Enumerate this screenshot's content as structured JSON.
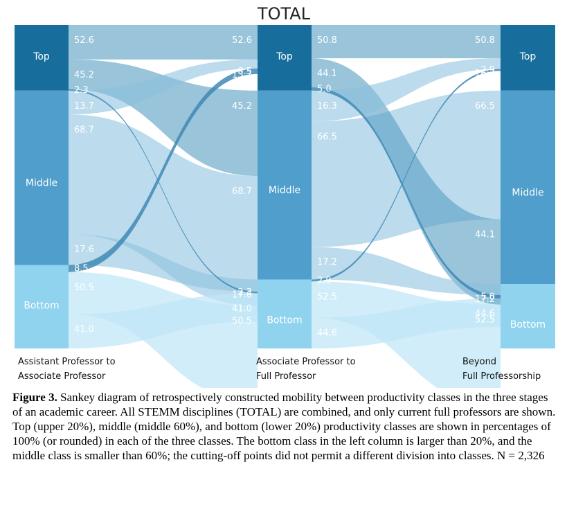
{
  "title": "TOTAL",
  "stages": [
    {
      "line1": "Assistant Professor to",
      "line2": "Associate Professor"
    },
    {
      "line1": "Associate Professor to",
      "line2": "Full Professor"
    },
    {
      "line1": "Beyond",
      "line2": "Full Professorship"
    }
  ],
  "caption": {
    "label": "Figure 3.",
    "text": "Sankey diagram of retrospectively constructed mobility between productivity classes in the three stages of an academic career. All STEMM disciplines (TOTAL) are combined, and only current full professors are shown. Top (upper 20%), middle (middle 60%), and bottom (lower 20%) productivity classes are shown in percentages of 100% (or rounded) in each of the three classes. The bottom class in the left column is larger than 20%, and the middle class is smaller than 60%; the cutting-off points did not permit a different division into classes. N = 2,326"
  },
  "chart_data": {
    "type": "sankey",
    "classes": [
      "Top",
      "Middle",
      "Bottom"
    ],
    "class_colors": {
      "Top": "#176e9c",
      "Middle": "#4f9ecb",
      "Bottom": "#8fd3ef"
    },
    "columns": [
      {
        "label": "Assistant Professor to Associate Professor",
        "node_labels": [
          "Top",
          "Middle",
          "Bottom"
        ],
        "shares": [
          20.3,
          53.9,
          25.8
        ]
      },
      {
        "label": "Associate Professor to Full Professor",
        "node_labels": [
          "Top",
          "Middle",
          "Bottom"
        ],
        "shares": [
          20.3,
          58.4,
          21.3
        ]
      },
      {
        "label": "Beyond Full Professorship",
        "node_labels": [
          "Top",
          "Middle",
          "Bottom"
        ],
        "shares": [
          20.3,
          59.8,
          19.9
        ]
      }
    ],
    "flows": [
      [
        {
          "from": "Top",
          "to": "Top",
          "value": 52.6,
          "source_label": "52.6",
          "target_label": "52.6"
        },
        {
          "from": "Top",
          "to": "Middle",
          "value": 45.2,
          "source_label": "45.2",
          "target_label": "45.2"
        },
        {
          "from": "Top",
          "to": "Bottom",
          "value": 2.3,
          "source_label": "2.3",
          "target_label": "2.3"
        },
        {
          "from": "Middle",
          "to": "Top",
          "value": 13.7,
          "source_label": "13.7",
          "target_label": "13.7"
        },
        {
          "from": "Middle",
          "to": "Middle",
          "value": 68.7,
          "source_label": "68.7",
          "target_label": "68.7"
        },
        {
          "from": "Middle",
          "to": "Bottom",
          "value": 17.6,
          "source_label": "17.6",
          "target_label": "17.6"
        },
        {
          "from": "Bottom",
          "to": "Top",
          "value": 8.5,
          "source_label": "8.5",
          "target_label": "8.5"
        },
        {
          "from": "Bottom",
          "to": "Middle",
          "value": 50.5,
          "source_label": "50.5",
          "target_label": "50.5"
        },
        {
          "from": "Bottom",
          "to": "Bottom",
          "value": 41.0,
          "source_label": "41.0",
          "target_label": "41.0"
        }
      ],
      [
        {
          "from": "Top",
          "to": "Top",
          "value": 50.8,
          "source_label": "50.8",
          "target_label": "50.8"
        },
        {
          "from": "Top",
          "to": "Middle",
          "value": 44.1,
          "source_label": "44.1",
          "target_label": "44.1"
        },
        {
          "from": "Top",
          "to": "Bottom",
          "value": 5.0,
          "source_label": "5.0",
          "target_label": "5.0"
        },
        {
          "from": "Middle",
          "to": "Top",
          "value": 16.3,
          "source_label": "16.3",
          "target_label": "16.3"
        },
        {
          "from": "Middle",
          "to": "Middle",
          "value": 66.5,
          "source_label": "66.5",
          "target_label": "66.5"
        },
        {
          "from": "Middle",
          "to": "Bottom",
          "value": 17.2,
          "source_label": "17.2",
          "target_label": "17.2"
        },
        {
          "from": "Bottom",
          "to": "Top",
          "value": 2.9,
          "source_label": "2.9",
          "target_label": "2.9"
        },
        {
          "from": "Bottom",
          "to": "Middle",
          "value": 52.5,
          "source_label": "52.5",
          "target_label": "52.5"
        },
        {
          "from": "Bottom",
          "to": "Bottom",
          "value": 44.6,
          "source_label": "44.6",
          "target_label": "44.6"
        }
      ]
    ],
    "target_order": [
      {
        "Top": [
          "Top",
          "Middle",
          "Bottom"
        ],
        "Middle": [
          "Top",
          "Middle",
          "Bottom"
        ],
        "Bottom": [
          "Middle",
          "Top",
          "Bottom"
        ]
      },
      {
        "Top": [
          "Top",
          "Middle",
          "Bottom"
        ],
        "Middle": [
          "Middle",
          "Top",
          "Bottom"
        ],
        "Bottom": [
          "Middle",
          "Top",
          "Bottom"
        ]
      }
    ]
  }
}
